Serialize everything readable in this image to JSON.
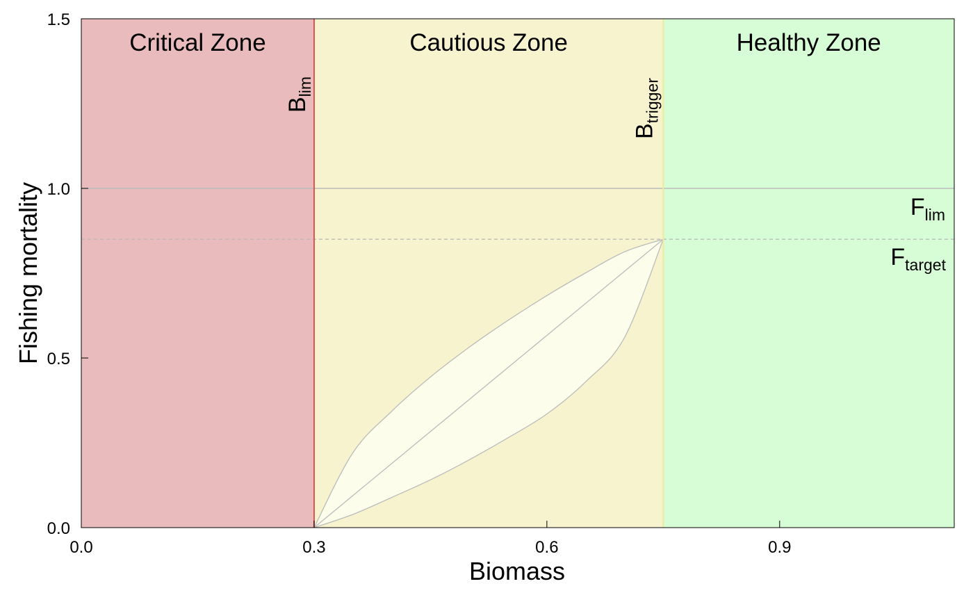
{
  "chart_data": {
    "type": "area",
    "xlabel": "Biomass",
    "ylabel": "Fishing mortality",
    "xlim": [
      0,
      1.125
    ],
    "ylim": [
      0,
      1.5
    ],
    "x_ticks": [
      0,
      0.3,
      0.6,
      0.9
    ],
    "x_tick_labels": [
      "0.0",
      "0.3",
      "0.6",
      "0.9"
    ],
    "y_ticks": [
      0,
      0.5,
      1.0,
      1.5
    ],
    "y_tick_labels": [
      "0.0",
      "0.5",
      "1.0",
      "1.5"
    ],
    "grid": false,
    "zones": [
      {
        "name": "Critical Zone",
        "x_from": 0,
        "x_to": 0.3,
        "color": "#e9bbbc"
      },
      {
        "name": "Cautious Zone",
        "x_from": 0.3,
        "x_to": 0.75,
        "color": "#f7f3cf"
      },
      {
        "name": "Healthy Zone",
        "x_from": 0.75,
        "x_to": 1.125,
        "color": "#d6fdd5"
      }
    ],
    "reference_points": {
      "B_lim": {
        "main": "B",
        "sub": "lim",
        "x": 0.3,
        "color": "#d9534f"
      },
      "B_trigger": {
        "main": "B",
        "sub": "trigger",
        "x": 0.75,
        "color": "#ecec9a"
      },
      "F_lim": {
        "main": "F",
        "sub": "lim",
        "y": 1.0,
        "color": "#bbbbbb"
      },
      "F_target": {
        "main": "F",
        "sub": "target",
        "y": 0.85,
        "color": "#bbbbbb"
      }
    },
    "hcr_curves": [
      {
        "kind": "concave",
        "x": [
          0.3,
          0.35,
          0.4,
          0.45,
          0.5,
          0.55,
          0.6,
          0.65,
          0.7,
          0.75
        ],
        "y": [
          0.0,
          0.221,
          0.343,
          0.444,
          0.532,
          0.611,
          0.684,
          0.751,
          0.813,
          0.85
        ]
      },
      {
        "kind": "linear",
        "x": [
          0.3,
          0.75
        ],
        "y": [
          0.0,
          0.85
        ]
      },
      {
        "kind": "convex",
        "x": [
          0.3,
          0.35,
          0.4,
          0.45,
          0.5,
          0.55,
          0.6,
          0.65,
          0.7,
          0.75
        ],
        "y": [
          0.0,
          0.039,
          0.089,
          0.141,
          0.2,
          0.265,
          0.335,
          0.43,
          0.56,
          0.85
        ]
      }
    ],
    "envelope_color": "#fdfdec",
    "curve_color": "#bbbbbb"
  }
}
